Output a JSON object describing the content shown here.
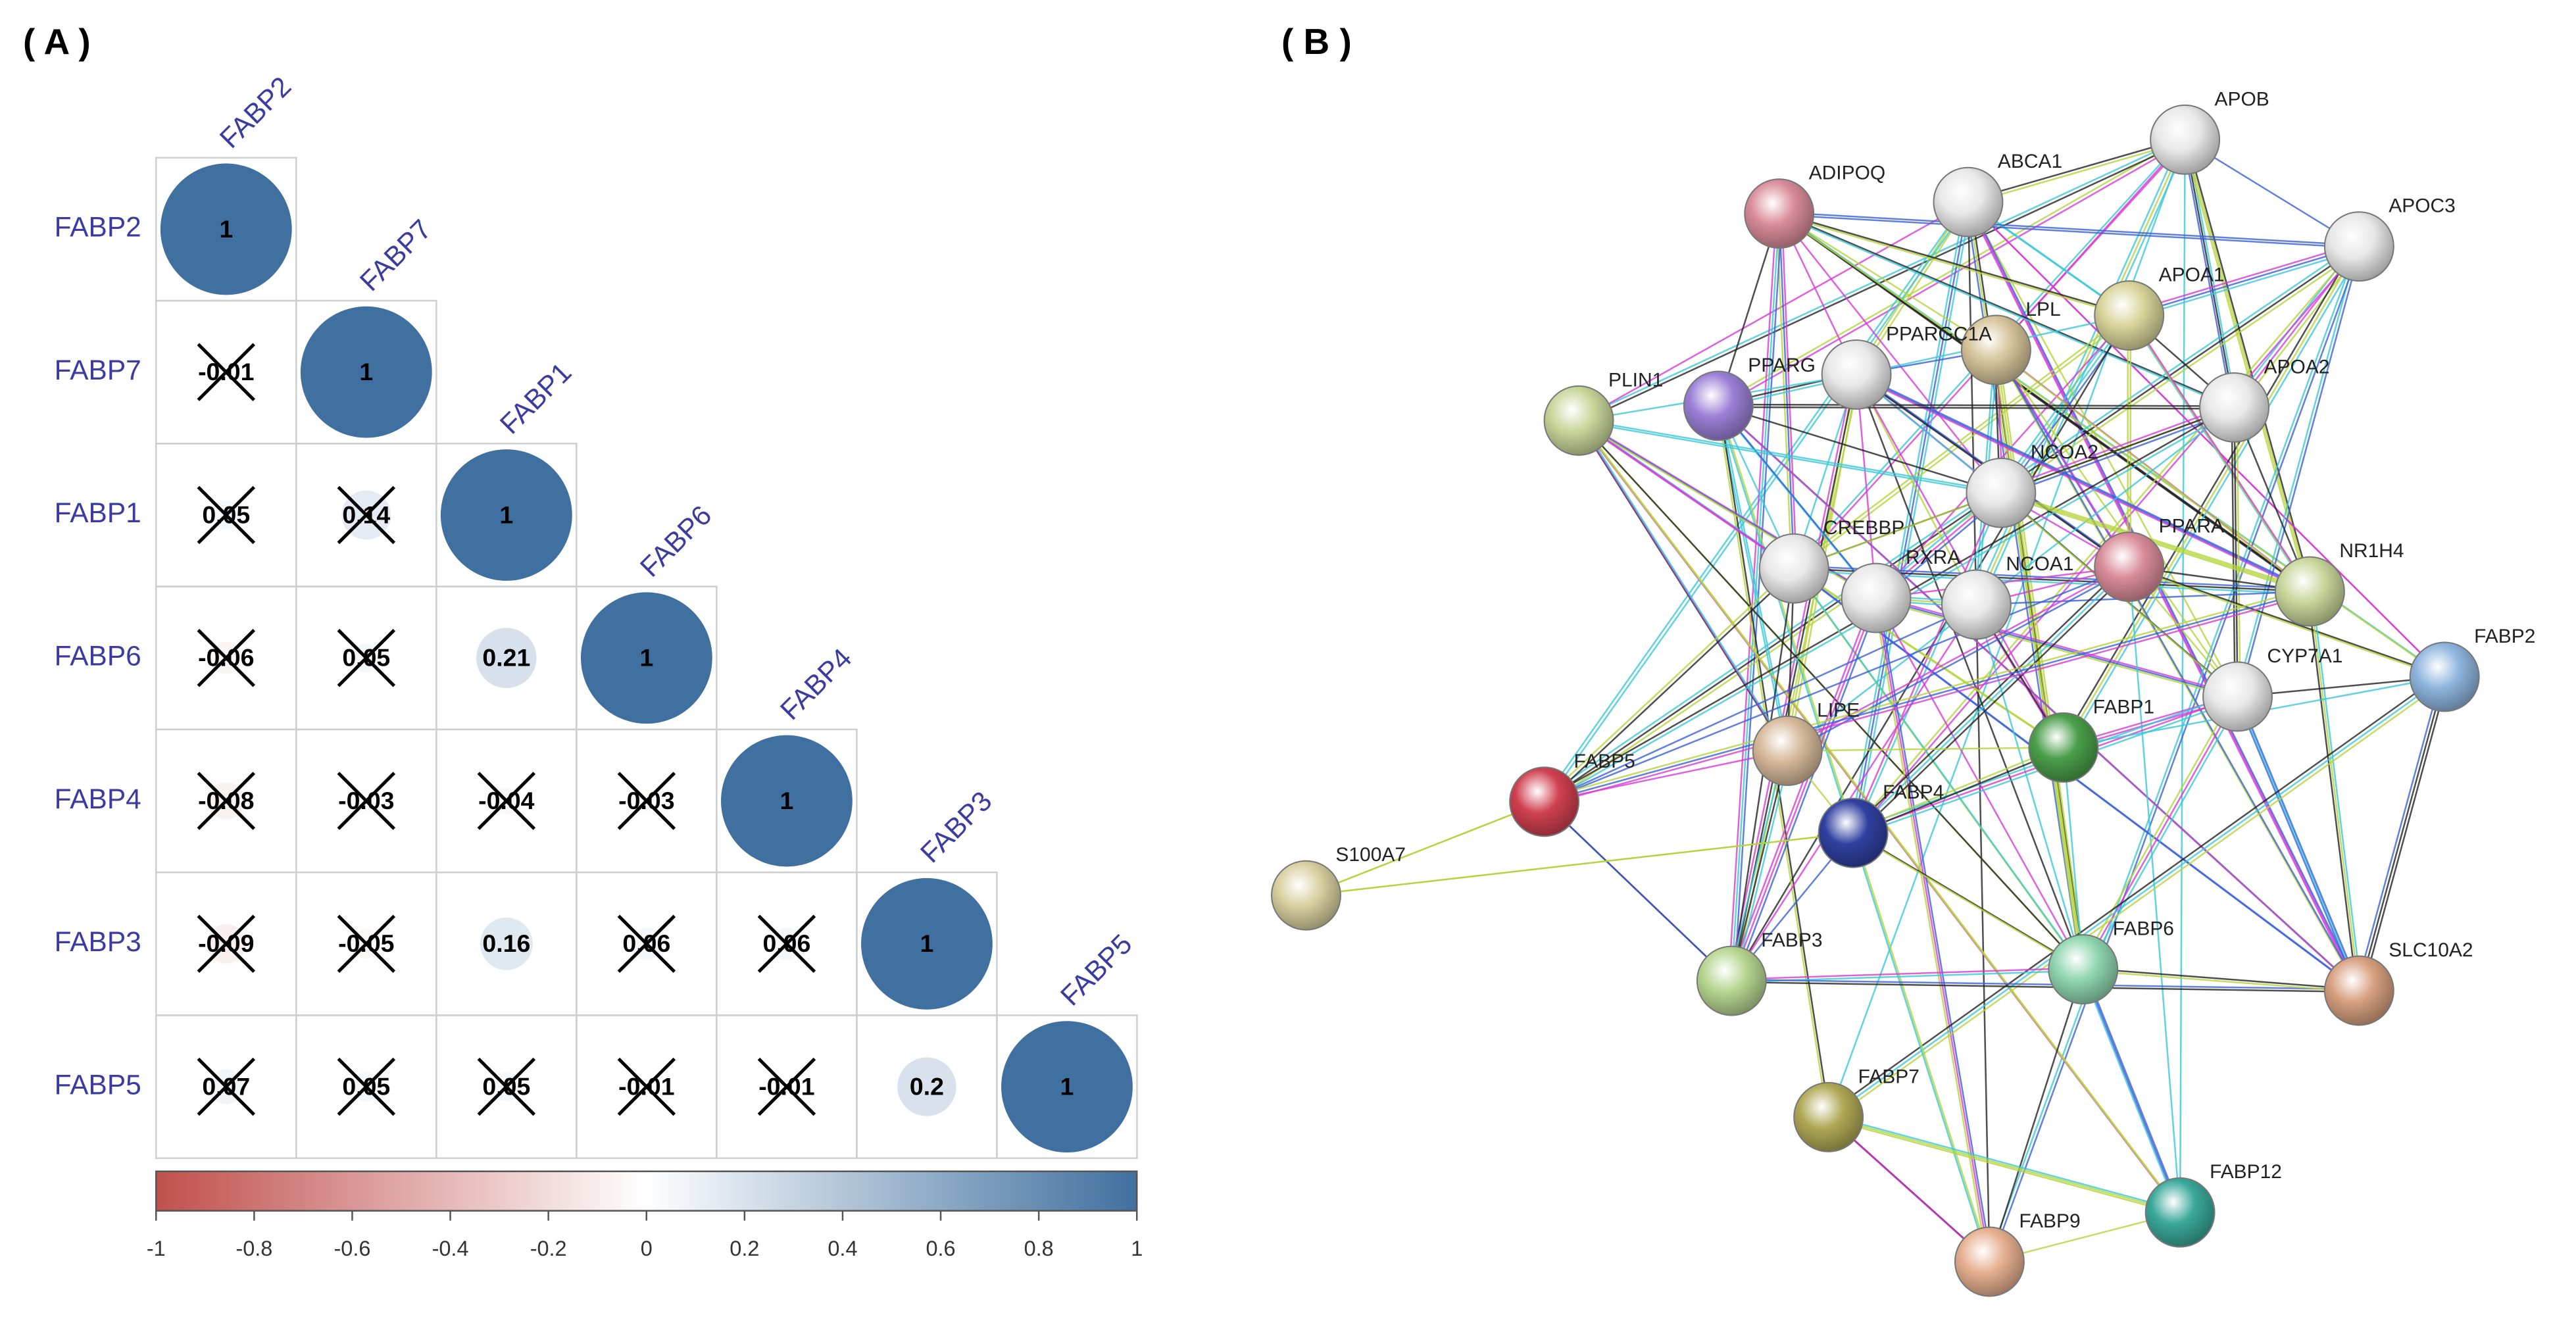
{
  "panel_labels": [
    "( A )",
    "( B )"
  ],
  "chart_data": [
    {
      "type": "correlogram",
      "variables": [
        "FABP2",
        "FABP7",
        "FABP1",
        "FABP6",
        "FABP4",
        "FABP3",
        "FABP5"
      ],
      "values": [
        [
          1
        ],
        [
          -0.01,
          1
        ],
        [
          0.05,
          0.14,
          1
        ],
        [
          -0.06,
          0.05,
          0.21,
          1
        ],
        [
          -0.08,
          -0.03,
          -0.04,
          -0.03,
          1
        ],
        [
          -0.09,
          -0.05,
          0.16,
          0.06,
          0.06,
          1
        ],
        [
          0.07,
          0.05,
          0.05,
          -0.01,
          -0.01,
          0.2,
          1
        ]
      ],
      "insignificant": [
        [
          false
        ],
        [
          true,
          false
        ],
        [
          true,
          true,
          false
        ],
        [
          true,
          true,
          false,
          false
        ],
        [
          true,
          true,
          true,
          true,
          false
        ],
        [
          true,
          true,
          false,
          true,
          true,
          false
        ],
        [
          true,
          true,
          true,
          true,
          true,
          false,
          false
        ]
      ],
      "colors": [
        "#c0504d",
        "#ffffff",
        "#40709f"
      ],
      "clim": [
        -1,
        1
      ],
      "cticks": [
        -1,
        -0.8,
        -0.6,
        -0.4,
        -0.2,
        0,
        0.2,
        0.4,
        0.6,
        0.8,
        1
      ]
    }
  ],
  "network": {
    "nodes": [
      {
        "label": "APOB",
        "color": "#e8e8e8"
      },
      {
        "label": "ABCA1",
        "color": "#e8e8e8"
      },
      {
        "label": "ADIPOQ",
        "color": "#d98c99"
      },
      {
        "label": "APOC3",
        "color": "#e8e8e8"
      },
      {
        "label": "APOA1",
        "color": "#d8d49a"
      },
      {
        "label": "LPL",
        "color": "#d6c49a"
      },
      {
        "label": "PPARGC1A",
        "color": "#e8e8e8"
      },
      {
        "label": "PPARG",
        "color": "#9b7fd6"
      },
      {
        "label": "PLIN1",
        "color": "#c8d69a"
      },
      {
        "label": "APOA2",
        "color": "#e8e8e8"
      },
      {
        "label": "NCOA2",
        "color": "#e8e8e8"
      },
      {
        "label": "CREBBP",
        "color": "#e8e8e8"
      },
      {
        "label": "RXRA",
        "color": "#e8e8e8"
      },
      {
        "label": "NCOA1",
        "color": "#e8e8e8"
      },
      {
        "label": "PPARA",
        "color": "#d98c99"
      },
      {
        "label": "NR1H4",
        "color": "#c8d69a"
      },
      {
        "label": "CYP7A1",
        "color": "#e8e8e8"
      },
      {
        "label": "FABP2",
        "color": "#8fb5de"
      },
      {
        "label": "FABP1",
        "color": "#4a9e4a"
      },
      {
        "label": "LIPE",
        "color": "#d6b99a"
      },
      {
        "label": "FABP5",
        "color": "#d04050"
      },
      {
        "label": "FABP4",
        "color": "#3040a0"
      },
      {
        "label": "S100A7",
        "color": "#d8d0a0"
      },
      {
        "label": "FABP3",
        "color": "#b6d690"
      },
      {
        "label": "FABP6",
        "color": "#8fd6b0"
      },
      {
        "label": "SLC10A2",
        "color": "#d8a080"
      },
      {
        "label": "FABP7",
        "color": "#b0a855"
      },
      {
        "label": "FABP12",
        "color": "#3aa89a"
      },
      {
        "label": "FABP9",
        "color": "#e6b090"
      }
    ]
  }
}
